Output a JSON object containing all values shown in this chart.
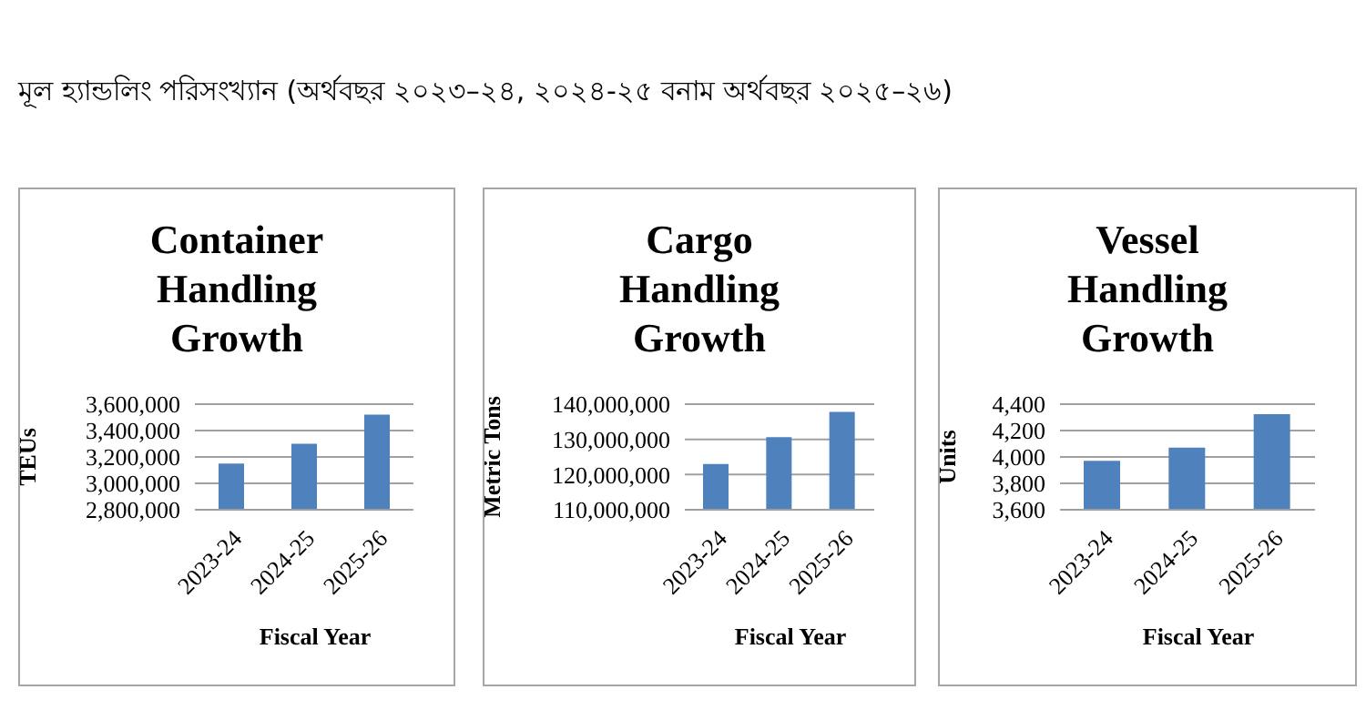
{
  "chart_data": [
    {
      "type": "bar",
      "title": "Container Handling Growth",
      "annotations": [
        "মূল হ্যান্ডলিং পরিসংখ্যান (অর্থবছর ২০২৩–২৪, ২০২৪-২৫ বনাম অর্থবছর ২০২৫–২৬)"
      ],
      "xlabel": "Fiscal Year",
      "ylabel": "TEUs",
      "categories": [
        "2023-24",
        "2024-25",
        "2025-26"
      ],
      "values": [
        3150000,
        3300000,
        3520000
      ],
      "color": "#4f81bd",
      "ylim": [
        2800000,
        3600000
      ],
      "yticks": [
        {
          "value": 2800000,
          "label": "2,800,000"
        },
        {
          "value": 3000000,
          "label": "3,000,000"
        },
        {
          "value": 3200000,
          "label": "3,200,000"
        },
        {
          "value": 3400000,
          "label": "3,400,000"
        },
        {
          "value": 3600000,
          "label": "3,600,000"
        }
      ],
      "grid": "y"
    },
    {
      "type": "bar",
      "title": "Cargo Handling Growth",
      "xlabel": "Fiscal Year",
      "ylabel": "Metric Tons",
      "categories": [
        "2023-24",
        "2024-25",
        "2025-26"
      ],
      "values": [
        123000000,
        130600000,
        137800000
      ],
      "color": "#4f81bd",
      "ylim": [
        110000000,
        140000000
      ],
      "yticks": [
        {
          "value": 110000000,
          "label": "110,000,000"
        },
        {
          "value": 120000000,
          "label": "120,000,000"
        },
        {
          "value": 130000000,
          "label": "130,000,000"
        },
        {
          "value": 140000000,
          "label": "140,000,000"
        }
      ],
      "grid": "y"
    },
    {
      "type": "bar",
      "title": "Vessel Handling Growth",
      "xlabel": "Fiscal Year",
      "ylabel": "Units",
      "categories": [
        "2023-24",
        "2024-25",
        "2025-26"
      ],
      "values": [
        3970,
        4070,
        4325
      ],
      "color": "#4f81bd",
      "ylim": [
        3600,
        4400
      ],
      "yticks": [
        {
          "value": 3600,
          "label": "3,600"
        },
        {
          "value": 3800,
          "label": "3,800"
        },
        {
          "value": 4000,
          "label": "4,000"
        },
        {
          "value": 4200,
          "label": "4,200"
        },
        {
          "value": 4400,
          "label": "4,400"
        }
      ],
      "grid": "y"
    }
  ]
}
